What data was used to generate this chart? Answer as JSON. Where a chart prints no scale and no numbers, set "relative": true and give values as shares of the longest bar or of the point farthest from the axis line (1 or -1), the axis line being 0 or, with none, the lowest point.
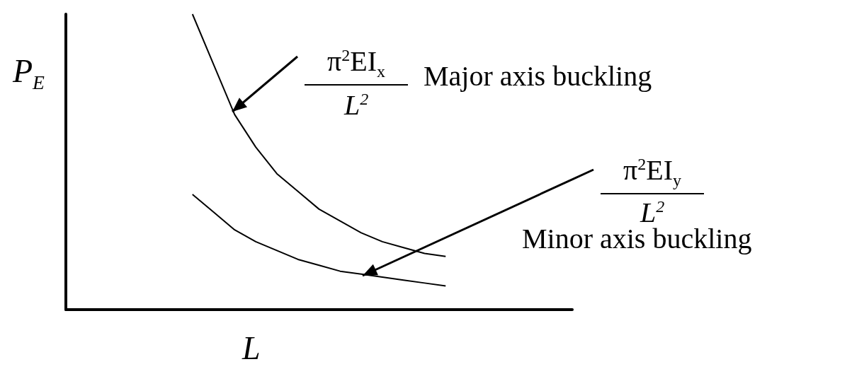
{
  "chart_data": {
    "type": "line",
    "relative": true,
    "xlabel": "L",
    "ylabel": "P$_{E}$",
    "categories": [
      null,
      null,
      null,
      null,
      null,
      null,
      null,
      null,
      null,
      null,
      null,
      null,
      null,
      null,
      null,
      null,
      null,
      null,
      null,
      null,
      null,
      null,
      null,
      null,
      null
    ],
    "series": [
      {
        "color": "#000000",
        "values": [
          null,
          null,
          null,
          null,
          null,
          null,
          1,
          0.83,
          0.66,
          0.55,
          0.46,
          0.4,
          0.34,
          0.3,
          0.26,
          0.23,
          0.21,
          0.19,
          0.18,
          null,
          null,
          null,
          null,
          null,
          null
        ]
      },
      {
        "color": "#000000",
        "values": [
          null,
          null,
          null,
          null,
          null,
          null,
          0.39,
          0.33,
          0.27,
          0.23,
          0.2,
          0.17,
          0.15,
          0.13,
          0.12,
          0.11,
          0.1,
          0.09,
          0.08,
          null,
          null,
          null,
          null,
          null,
          null
        ]
      }
    ],
    "annotations": [
      "π$^{2}$EI$_{x}$",
      "L$^{2}$",
      "Major axis buckling",
      "π$^{2}$EI$_{y}$",
      "L$^{2}$",
      "Minor axis buckling"
    ],
    "marker": "none",
    "line_style": "solid",
    "grid": false
  }
}
